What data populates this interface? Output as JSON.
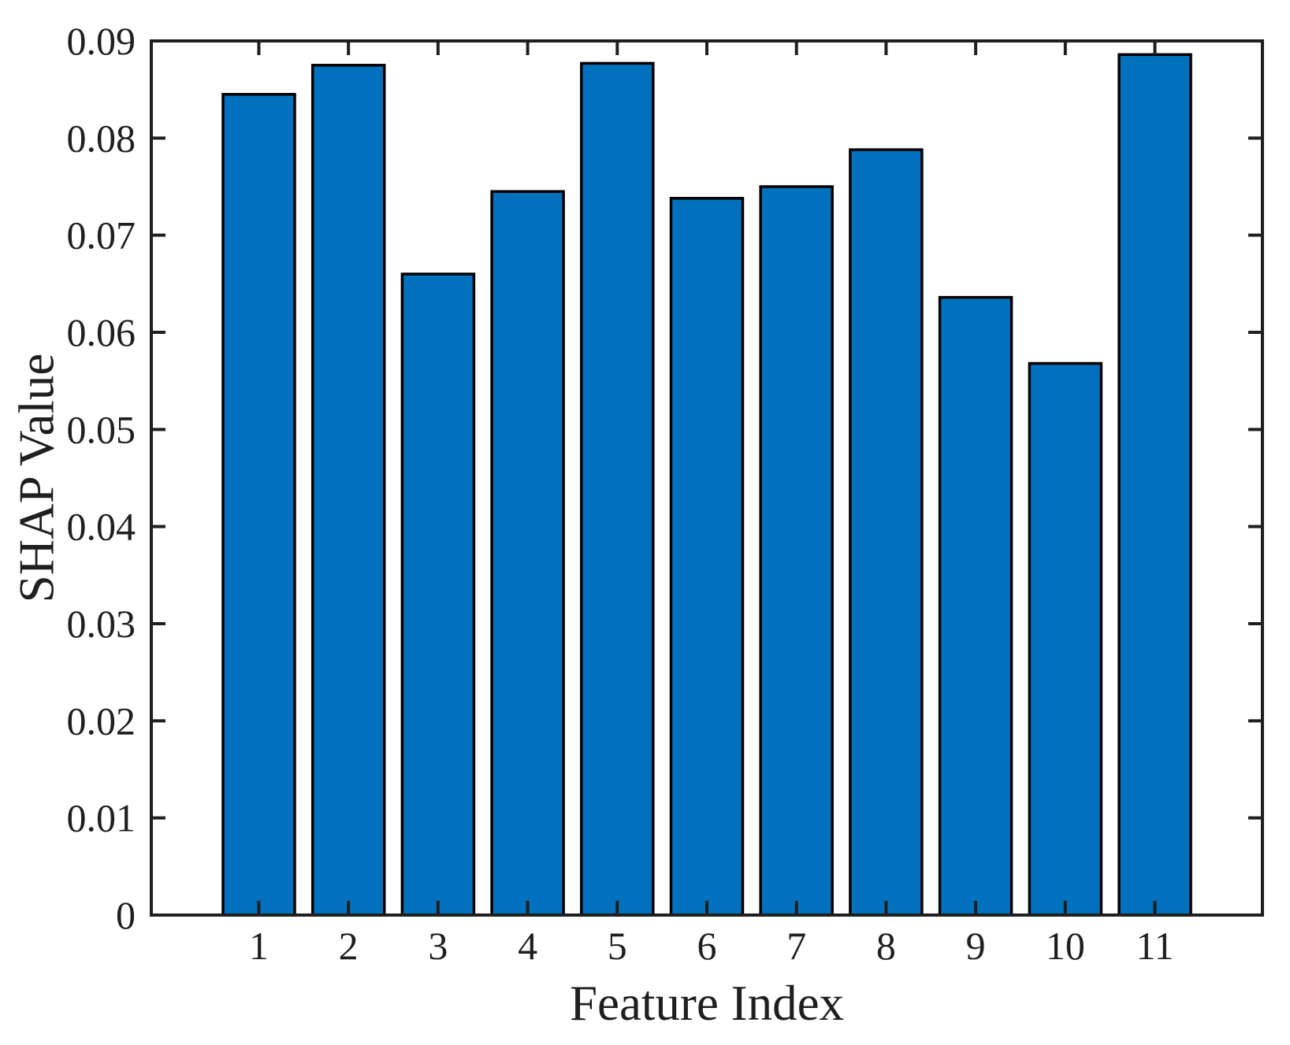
{
  "chart_data": {
    "type": "bar",
    "title": "",
    "xlabel": "Feature Index",
    "ylabel": "SHAP Value",
    "categories": [
      "1",
      "2",
      "3",
      "4",
      "5",
      "6",
      "7",
      "8",
      "9",
      "10",
      "11"
    ],
    "values": [
      0.0845,
      0.0875,
      0.066,
      0.0745,
      0.0877,
      0.0738,
      0.075,
      0.0788,
      0.0636,
      0.0568,
      0.0886
    ],
    "ylim": [
      0,
      0.09
    ],
    "yticks": [
      0,
      0.01,
      0.02,
      0.03,
      0.04,
      0.05,
      0.06,
      0.07,
      0.08,
      0.09
    ],
    "ytick_labels": [
      "0",
      "0.01",
      "0.02",
      "0.03",
      "0.04",
      "0.05",
      "0.06",
      "0.07",
      "0.08",
      "0.09"
    ],
    "grid": false,
    "legend_position": "none",
    "bar_color": "#0072BD",
    "bar_edge_color": "#000000",
    "axis_color": "#1f1f1f",
    "bar_width_ratio": 0.8
  }
}
